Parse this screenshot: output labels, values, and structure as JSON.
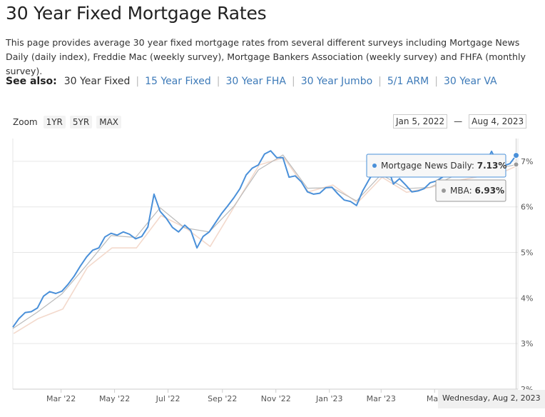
{
  "page": {
    "title": "30 Year Fixed Mortgage Rates",
    "intro": "This page provides average 30 year fixed mortgage rates from several different surveys including Mortgage News Daily (daily index), Freddie Mac (weekly survey), Mortgage Bankers Association (weekly survey) and FHFA (monthly survey)."
  },
  "see_also": {
    "label": "See also:",
    "current": "30 Year Fixed",
    "links": [
      "15 Year Fixed",
      "30 Year FHA",
      "30 Year Jumbo",
      "5/1 ARM",
      "30 Year VA"
    ]
  },
  "zoom": {
    "label": "Zoom",
    "buttons": [
      "1YR",
      "5YR",
      "MAX"
    ]
  },
  "range": {
    "from": "Jan 5, 2022",
    "to": "Aug 4, 2023",
    "separator": "—"
  },
  "crosshair": {
    "date_label": "Wednesday, Aug 2, 2023"
  },
  "tooltips": [
    {
      "series": "Mortgage News Daily",
      "value": "7.13%",
      "color": "#4a90d9"
    },
    {
      "series": "MBA",
      "value": "6.93%",
      "color": "#999999"
    }
  ],
  "chart_data": {
    "type": "line",
    "ylim": [
      2,
      7.5
    ],
    "y_ticks": [
      "2%",
      "3%",
      "4%",
      "5%",
      "6%",
      "7%"
    ],
    "x_ticks": [
      "Mar '22",
      "May '22",
      "Jul '22",
      "Sep '22",
      "Nov '22",
      "Jan '23",
      "Mar '23",
      "May"
    ],
    "x_range": [
      "2022-01-05",
      "2023-08-04"
    ],
    "grid": true,
    "series": [
      {
        "name": "Mortgage News Daily",
        "color": "#4a90d9",
        "points": [
          [
            "2022-01-05",
            3.36
          ],
          [
            "2022-01-12",
            3.55
          ],
          [
            "2022-01-19",
            3.68
          ],
          [
            "2022-01-26",
            3.7
          ],
          [
            "2022-02-02",
            3.78
          ],
          [
            "2022-02-09",
            4.04
          ],
          [
            "2022-02-16",
            4.14
          ],
          [
            "2022-02-23",
            4.1
          ],
          [
            "2022-03-02",
            4.15
          ],
          [
            "2022-03-09",
            4.3
          ],
          [
            "2022-03-16",
            4.48
          ],
          [
            "2022-03-23",
            4.7
          ],
          [
            "2022-03-30",
            4.9
          ],
          [
            "2022-04-06",
            5.05
          ],
          [
            "2022-04-13",
            5.1
          ],
          [
            "2022-04-20",
            5.34
          ],
          [
            "2022-04-27",
            5.42
          ],
          [
            "2022-05-04",
            5.38
          ],
          [
            "2022-05-11",
            5.45
          ],
          [
            "2022-05-18",
            5.4
          ],
          [
            "2022-05-25",
            5.3
          ],
          [
            "2022-06-01",
            5.35
          ],
          [
            "2022-06-08",
            5.56
          ],
          [
            "2022-06-15",
            6.28
          ],
          [
            "2022-06-22",
            5.9
          ],
          [
            "2022-06-29",
            5.75
          ],
          [
            "2022-07-06",
            5.55
          ],
          [
            "2022-07-13",
            5.45
          ],
          [
            "2022-07-20",
            5.6
          ],
          [
            "2022-07-27",
            5.48
          ],
          [
            "2022-08-03",
            5.1
          ],
          [
            "2022-08-10",
            5.35
          ],
          [
            "2022-08-17",
            5.45
          ],
          [
            "2022-08-24",
            5.65
          ],
          [
            "2022-08-31",
            5.85
          ],
          [
            "2022-09-07",
            6.02
          ],
          [
            "2022-09-14",
            6.2
          ],
          [
            "2022-09-21",
            6.4
          ],
          [
            "2022-09-28",
            6.7
          ],
          [
            "2022-10-05",
            6.85
          ],
          [
            "2022-10-12",
            6.92
          ],
          [
            "2022-10-19",
            7.16
          ],
          [
            "2022-10-26",
            7.23
          ],
          [
            "2022-11-02",
            7.08
          ],
          [
            "2022-11-09",
            7.08
          ],
          [
            "2022-11-16",
            6.65
          ],
          [
            "2022-11-23",
            6.68
          ],
          [
            "2022-11-30",
            6.55
          ],
          [
            "2022-12-07",
            6.33
          ],
          [
            "2022-12-14",
            6.28
          ],
          [
            "2022-12-21",
            6.3
          ],
          [
            "2022-12-28",
            6.42
          ],
          [
            "2023-01-04",
            6.43
          ],
          [
            "2023-01-11",
            6.28
          ],
          [
            "2023-01-18",
            6.15
          ],
          [
            "2023-01-25",
            6.12
          ],
          [
            "2023-02-01",
            6.03
          ],
          [
            "2023-02-08",
            6.35
          ],
          [
            "2023-02-15",
            6.59
          ],
          [
            "2023-02-22",
            6.8
          ],
          [
            "2023-03-01",
            7.07
          ],
          [
            "2023-03-08",
            6.9
          ],
          [
            "2023-03-15",
            6.5
          ],
          [
            "2023-03-22",
            6.62
          ],
          [
            "2023-03-29",
            6.48
          ],
          [
            "2023-04-05",
            6.33
          ],
          [
            "2023-04-12",
            6.35
          ],
          [
            "2023-04-19",
            6.4
          ],
          [
            "2023-04-26",
            6.53
          ],
          [
            "2023-05-03",
            6.57
          ],
          [
            "2023-05-10",
            6.65
          ],
          [
            "2023-05-17",
            6.8
          ],
          [
            "2023-05-24",
            6.9
          ],
          [
            "2023-05-31",
            7.08
          ],
          [
            "2023-06-07",
            6.85
          ],
          [
            "2023-06-14",
            6.89
          ],
          [
            "2023-06-21",
            6.81
          ],
          [
            "2023-06-28",
            6.95
          ],
          [
            "2023-07-05",
            7.22
          ],
          [
            "2023-07-12",
            6.95
          ],
          [
            "2023-07-19",
            6.9
          ],
          [
            "2023-07-26",
            6.95
          ],
          [
            "2023-08-02",
            7.13
          ]
        ]
      },
      {
        "name": "MBA",
        "color": "#bbbbbb",
        "points": [
          [
            "2022-01-05",
            3.33
          ],
          [
            "2022-02-02",
            3.69
          ],
          [
            "2022-03-02",
            4.09
          ],
          [
            "2022-03-30",
            4.72
          ],
          [
            "2022-04-27",
            5.37
          ],
          [
            "2022-05-25",
            5.33
          ],
          [
            "2022-06-22",
            5.98
          ],
          [
            "2022-07-20",
            5.54
          ],
          [
            "2022-08-17",
            5.45
          ],
          [
            "2022-09-14",
            6.01
          ],
          [
            "2022-10-12",
            6.81
          ],
          [
            "2022-11-09",
            7.14
          ],
          [
            "2022-12-07",
            6.41
          ],
          [
            "2023-01-04",
            6.42
          ],
          [
            "2023-02-01",
            6.13
          ],
          [
            "2023-03-01",
            6.71
          ],
          [
            "2023-03-29",
            6.4
          ],
          [
            "2023-04-26",
            6.43
          ],
          [
            "2023-05-24",
            6.69
          ],
          [
            "2023-06-21",
            6.73
          ],
          [
            "2023-07-19",
            6.87
          ],
          [
            "2023-08-02",
            6.93
          ]
        ]
      },
      {
        "name": "Freddie Mac",
        "color": "#f3d9cc",
        "points": [
          [
            "2022-01-06",
            3.22
          ],
          [
            "2022-02-03",
            3.55
          ],
          [
            "2022-03-03",
            3.76
          ],
          [
            "2022-03-31",
            4.67
          ],
          [
            "2022-04-28",
            5.1
          ],
          [
            "2022-05-26",
            5.1
          ],
          [
            "2022-06-23",
            5.81
          ],
          [
            "2022-07-21",
            5.54
          ],
          [
            "2022-08-18",
            5.13
          ],
          [
            "2022-09-15",
            6.02
          ],
          [
            "2022-10-13",
            6.92
          ],
          [
            "2022-11-10",
            7.08
          ],
          [
            "2022-12-08",
            6.33
          ],
          [
            "2023-01-05",
            6.48
          ],
          [
            "2023-02-02",
            6.09
          ],
          [
            "2023-03-02",
            6.65
          ],
          [
            "2023-03-30",
            6.32
          ],
          [
            "2023-04-27",
            6.43
          ],
          [
            "2023-05-25",
            6.57
          ],
          [
            "2023-06-22",
            6.67
          ],
          [
            "2023-07-20",
            6.78
          ],
          [
            "2023-08-03",
            6.9
          ]
        ]
      }
    ]
  }
}
